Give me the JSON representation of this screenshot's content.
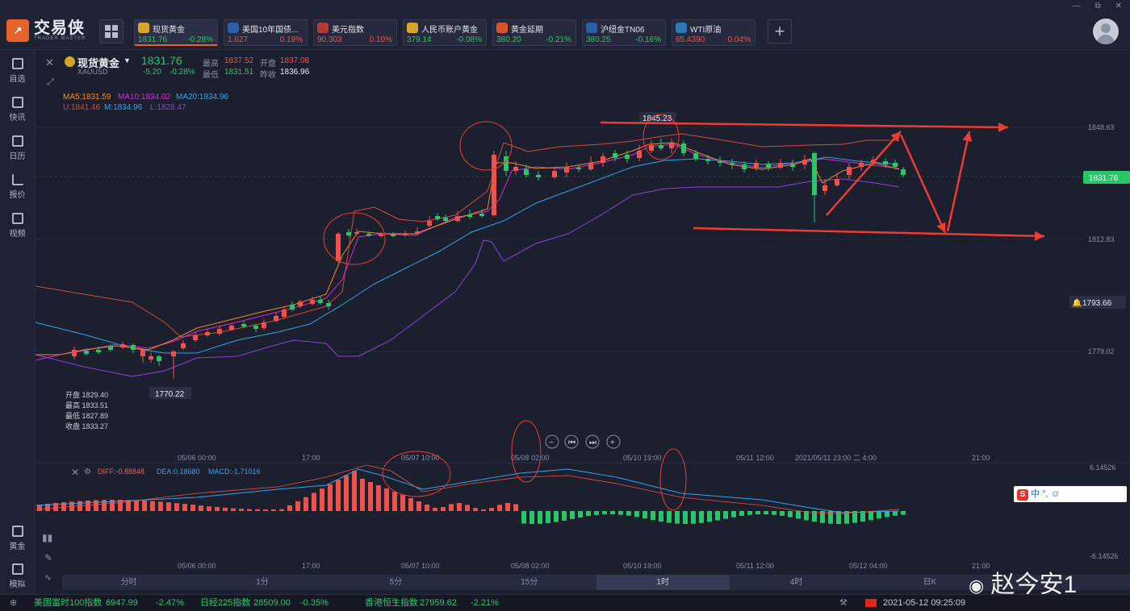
{
  "app": {
    "name": "交易侠",
    "subtitle": "TRADER MASTER"
  },
  "quotes": [
    {
      "name": "现货黄金",
      "price": "1831.76",
      "change": "-0.28%",
      "dir": "down",
      "icon": "gold-icon",
      "color": "#d4a72c"
    },
    {
      "name": "美国10年国债...",
      "price": "1.627",
      "change": "0.19%",
      "dir": "up",
      "icon": "bar-chart-icon",
      "color": "#2d5ea8"
    },
    {
      "name": "美元指数",
      "price": "90.303",
      "change": "0.10%",
      "dir": "up",
      "icon": "us-flag-icon",
      "color": "#b23a3a"
    },
    {
      "name": "人民币账户黄金",
      "price": "379.14",
      "change": "-0.08%",
      "dir": "down",
      "icon": "gold-icon",
      "color": "#d4a72c"
    },
    {
      "name": "黄金延期",
      "price": "380.20",
      "change": "-0.21%",
      "dir": "down",
      "icon": "gold-bar-icon",
      "color": "#d4552c"
    },
    {
      "name": "沪纽金TN06",
      "price": "380.25",
      "change": "-0.16%",
      "dir": "down",
      "icon": "bar-chart-icon",
      "color": "#2d5ea8"
    },
    {
      "name": "WTI原油",
      "price": "65.4390",
      "change": "0.04%",
      "dir": "up",
      "icon": "oil-icon",
      "color": "#2d7ab8"
    }
  ],
  "nav": [
    {
      "label": "自选",
      "icon": "bookmark-icon"
    },
    {
      "label": "快讯",
      "icon": "news-icon"
    },
    {
      "label": "日历",
      "icon": "calendar-icon"
    },
    {
      "label": "报价",
      "icon": "trend-icon"
    },
    {
      "label": "视频",
      "icon": "video-icon"
    },
    {
      "label": "黄金",
      "icon": "calculator-icon"
    },
    {
      "label": "模拟",
      "icon": "wallet-icon"
    }
  ],
  "symbol": {
    "name": "现货黄金",
    "code": "XAUUSD",
    "price": "1831.76",
    "change": "-5.20",
    "change_pct": "-0.28%",
    "high_label": "最高",
    "high": "1837.52",
    "open_label": "开盘",
    "open": "1837.08",
    "low_label": "最低",
    "low": "1831.51",
    "prev_label": "昨收",
    "prev": "1836.96"
  },
  "indicators": {
    "ma5": "MA5:1831.59",
    "ma10": "MA10:1834.02",
    "ma20": "MA20:1834.96",
    "boll_u": "U:1841.46",
    "boll_m": "M:1834.96",
    "boll_l": "L:1828.47"
  },
  "hover_info": {
    "open": "开盘 1829.40",
    "high": "最高 1833.51",
    "low": "最低 1827.89",
    "close": "收盘 1833.27"
  },
  "price_axis": [
    "1848.63",
    "1812.83",
    "1779.02"
  ],
  "price_tags": {
    "current": "1831.76",
    "alert": "1793.66",
    "peak": "1845.23",
    "trough": "1770.22"
  },
  "time_axis": [
    "05/06 00:00",
    "17:00",
    "05/07 10:00",
    "05/08 02:00",
    "05/10 19:00",
    "05/11 12:00",
    "2021/05/11 23:00 二 4:00",
    "21:00"
  ],
  "macd_time_axis": [
    "05/06 00:00",
    "17:00",
    "05/07 10:00",
    "05/08 02:00",
    "05/10 19:00",
    "05/11 12:00",
    "05/12 04:00",
    "21:00"
  ],
  "macd": {
    "diff": "DIFF:-0.88848",
    "dea": "DEA:0.18680",
    "macd": "MACD:-1.71016",
    "axis_top": "6.14526",
    "axis_bottom": "-6.14526"
  },
  "periods": [
    "分时",
    "1分",
    "5分",
    "15分",
    "1时",
    "4时",
    "日K",
    ""
  ],
  "ticker": [
    {
      "name": "美国富时100指数",
      "value": "6947.99",
      "change": "-2.47%"
    },
    {
      "name": "日经225指数",
      "value": "28509.00",
      "change": "-0.35%"
    },
    {
      "name": "香港恒生指数",
      "value": "27959.62",
      "change": "-2.21%"
    }
  ],
  "datetime": "2021-05-12 09:25:09",
  "watermark": "赵今安1",
  "ime_text": "中 °, ☺",
  "window_controls": [
    "—",
    "⧉",
    "✕"
  ],
  "zoom_controls": [
    "−",
    "⏮",
    "⏭",
    "+"
  ],
  "colors": {
    "up": "#f0524b",
    "down": "#2bc569",
    "accent": "#e8632b",
    "ma5": "#f08a24",
    "ma10": "#d12ad9",
    "ma20": "#2ea3f2",
    "bollU": "#d14b3c",
    "bollL": "#8b42e0",
    "annot": "#ee3b35"
  }
}
